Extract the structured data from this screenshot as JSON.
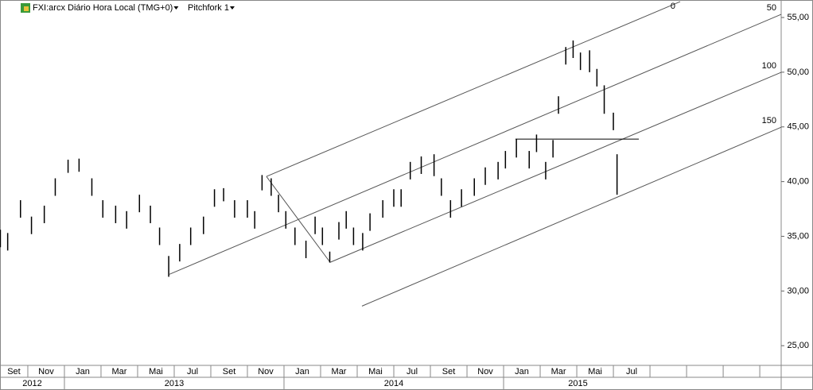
{
  "chart_data": {
    "type": "ohlc",
    "title": "FXI:arcx Diário Hora Local (TMG+0)",
    "study": "Pitchfork 1",
    "color": "#000000",
    "xlim": [
      0.48,
      43.17
    ],
    "ylim": [
      23.2,
      56.6
    ],
    "yticks": [
      {
        "value": 25,
        "label": "25,00"
      },
      {
        "value": 30,
        "label": "30,00"
      },
      {
        "value": 35,
        "label": "35,00"
      },
      {
        "value": 40,
        "label": "40,00"
      },
      {
        "value": 45,
        "label": "45,00"
      },
      {
        "value": 50,
        "label": "50,00"
      },
      {
        "value": 55,
        "label": "55,00"
      }
    ],
    "xticks": [
      {
        "value": 0,
        "label": "Set"
      },
      {
        "value": 2,
        "label": "Nov"
      },
      {
        "value": 4,
        "label": "Jan"
      },
      {
        "value": 6,
        "label": "Mar"
      },
      {
        "value": 8,
        "label": "Mai"
      },
      {
        "value": 10,
        "label": "Jul"
      },
      {
        "value": 12,
        "label": "Set"
      },
      {
        "value": 14,
        "label": "Nov"
      },
      {
        "value": 16,
        "label": "Jan"
      },
      {
        "value": 18,
        "label": "Mar"
      },
      {
        "value": 20,
        "label": "Mai"
      },
      {
        "value": 22,
        "label": "Jul"
      },
      {
        "value": 24,
        "label": "Set"
      },
      {
        "value": 26,
        "label": "Nov"
      },
      {
        "value": 28,
        "label": "Jan"
      },
      {
        "value": 30,
        "label": "Mar"
      },
      {
        "value": 32,
        "label": "Mai"
      },
      {
        "value": 34,
        "label": "Jul"
      },
      {
        "value": 36,
        "label": null
      },
      {
        "value": 38,
        "label": null
      },
      {
        "value": 40,
        "label": null
      },
      {
        "value": 42,
        "label": null
      }
    ],
    "years": [
      {
        "value": -8,
        "label": "2012"
      },
      {
        "value": 4,
        "label": "2013"
      },
      {
        "value": 16,
        "label": "2014"
      },
      {
        "value": 28,
        "label": "2015"
      }
    ],
    "x": [
      0.5,
      0.9,
      1.6,
      2.2,
      2.9,
      3.5,
      4.2,
      4.8,
      5.5,
      6.1,
      6.8,
      7.4,
      8.1,
      8.7,
      9.2,
      9.7,
      10.3,
      10.9,
      11.6,
      12.2,
      12.7,
      13.3,
      14.0,
      14.4,
      14.8,
      15.3,
      15.7,
      16.1,
      16.6,
      17.2,
      17.7,
      18.1,
      18.5,
      19.0,
      19.4,
      19.8,
      20.3,
      20.7,
      21.4,
      22.0,
      22.4,
      22.9,
      23.5,
      24.2,
      24.6,
      25.1,
      25.7,
      26.4,
      27.0,
      27.7,
      28.1,
      28.7,
      29.4,
      29.8,
      30.3,
      30.7,
      31.0,
      31.4,
      31.8,
      32.2,
      32.7,
      33.1,
      33.5,
      34.0,
      34.2
    ],
    "high": [
      35.6,
      35.3,
      38.3,
      36.8,
      37.8,
      40.3,
      42.0,
      42.1,
      40.3,
      38.3,
      37.8,
      37.3,
      38.8,
      37.8,
      35.8,
      33.2,
      34.3,
      35.8,
      36.8,
      39.3,
      39.4,
      38.3,
      38.3,
      37.3,
      40.6,
      40.3,
      38.8,
      37.3,
      35.8,
      34.6,
      36.8,
      35.8,
      33.6,
      36.3,
      37.3,
      35.8,
      35.3,
      37.1,
      38.3,
      39.3,
      39.3,
      41.8,
      42.3,
      42.5,
      40.3,
      38.3,
      39.3,
      40.3,
      41.3,
      41.8,
      42.8,
      43.9,
      42.8,
      44.3,
      41.8,
      43.8,
      47.8,
      52.3,
      52.9,
      51.8,
      52.0,
      50.3,
      48.8,
      46.3,
      42.5
    ],
    "low": [
      34.0,
      33.7,
      36.7,
      35.2,
      36.2,
      38.7,
      40.8,
      40.9,
      38.7,
      36.7,
      36.2,
      35.7,
      37.2,
      36.2,
      34.2,
      31.3,
      32.7,
      34.2,
      35.2,
      37.7,
      38.2,
      36.7,
      36.7,
      35.7,
      39.2,
      38.7,
      37.2,
      35.7,
      34.2,
      33.0,
      35.2,
      34.2,
      32.6,
      34.7,
      35.7,
      34.2,
      33.7,
      35.5,
      36.7,
      37.7,
      37.7,
      40.2,
      40.7,
      40.5,
      38.7,
      36.7,
      37.7,
      38.7,
      39.7,
      40.2,
      41.2,
      42.2,
      41.2,
      42.7,
      40.2,
      42.2,
      46.2,
      50.7,
      51.3,
      50.2,
      50.0,
      48.7,
      46.2,
      44.7,
      38.8
    ],
    "lines": [
      {
        "label": "0",
        "x": [
          15.04,
          37.65
        ],
        "y": [
          40.47,
          56.45
        ]
      },
      {
        "label": "50",
        "x": [
          9.74,
          43.17
        ],
        "y": [
          31.53,
          55.29
        ]
      },
      {
        "label": "100",
        "x": [
          18.52,
          43.17
        ],
        "y": [
          32.62,
          49.99
        ]
      },
      {
        "label": "150",
        "x": [
          20.26,
          43.17
        ],
        "y": [
          28.62,
          44.97
        ]
      }
    ],
    "handle": {
      "x": [
        15.04,
        18.52
      ],
      "y": [
        40.47,
        32.62
      ]
    },
    "level": {
      "x": [
        28.65,
        35.39
      ],
      "y": 43.88
    }
  }
}
